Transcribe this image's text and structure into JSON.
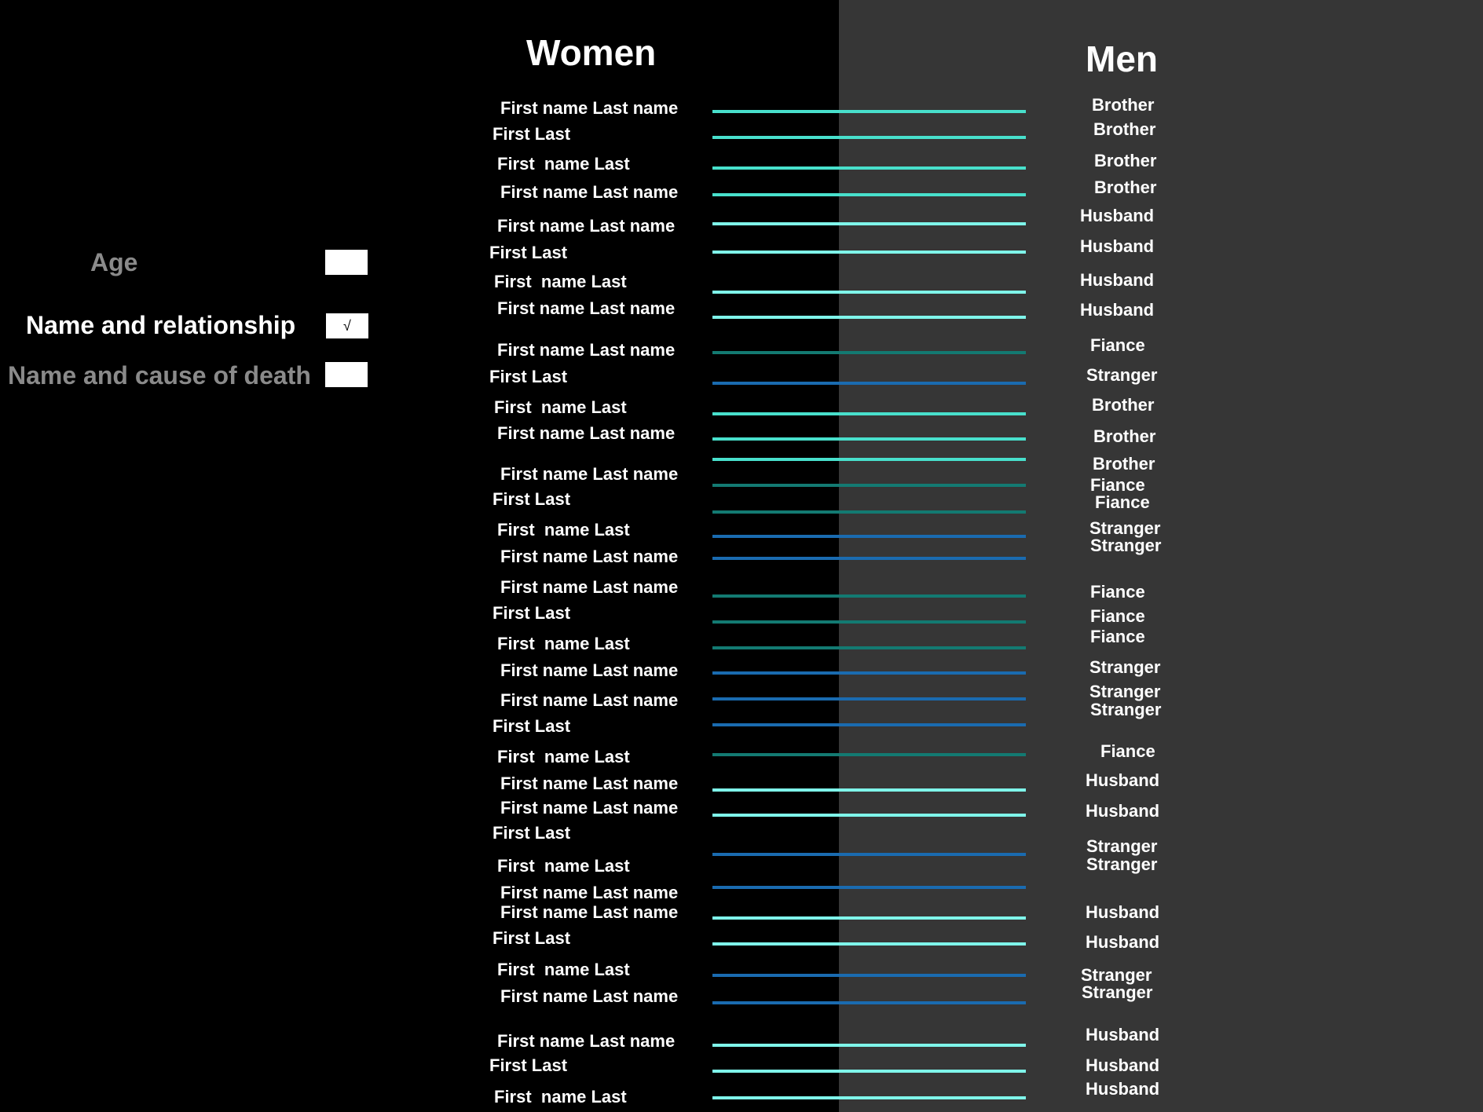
{
  "header": {
    "women_title": "Women",
    "men_title": "Men"
  },
  "options": [
    {
      "label": "Age",
      "checked": false,
      "mark": "",
      "active": false
    },
    {
      "label": "Name and relationship",
      "checked": true,
      "mark": "√",
      "active": true
    },
    {
      "label": "Name and cause of death",
      "checked": false,
      "mark": "",
      "active": false
    }
  ],
  "relationship_colors": {
    "Brother": "#48e0cc",
    "Husband": "#7ff5ea",
    "Fiance": "#137a72",
    "Stranger": "#1a6bb0"
  },
  "women": [
    "First name Last name",
    "First Last",
    "First  name Last",
    "First name Last name",
    "First name Last name",
    "First Last",
    "First  name Last",
    "First name Last name",
    "First name Last name",
    "First Last",
    "First  name Last",
    "First name Last name",
    "First name Last name",
    "First Last",
    "First  name Last",
    "First name Last name",
    "First name Last name",
    "First Last",
    "First  name Last",
    "First name Last name",
    "First name Last name",
    "First Last",
    "First  name Last",
    "First name Last name",
    "First name Last name",
    "First Last",
    "First  name Last",
    "First name Last name",
    "First name Last name",
    "First Last",
    "First  name Last",
    "First name Last name",
    "First name Last name",
    "First Last",
    "First  name Last"
  ],
  "men": [
    "Brother",
    "Brother",
    "Brother",
    "Brother",
    "Husband",
    "Husband",
    "Husband",
    "Husband",
    "Fiance",
    "Stranger",
    "Brother",
    "Brother",
    "Brother",
    "Fiance",
    "Fiance",
    "Stranger",
    "Stranger",
    "Fiance",
    "Fiance",
    "Fiance",
    "Stranger",
    "Stranger",
    "Stranger",
    "Fiance",
    "Husband",
    "Husband",
    "Stranger",
    "Stranger",
    "Husband",
    "Husband",
    "Stranger",
    "Stranger",
    "Husband",
    "Husband",
    "Husband"
  ],
  "links": [
    "Brother",
    "Brother",
    "Brother",
    "Brother",
    "Husband",
    "Husband",
    "Husband",
    "Husband",
    "Fiance",
    "Stranger",
    "Brother",
    "Brother",
    "Brother",
    "Fiance",
    "Fiance",
    "Stranger",
    "Stranger",
    "Fiance",
    "Fiance",
    "Fiance",
    "Stranger",
    "Stranger",
    "Stranger",
    "Fiance",
    "Husband",
    "Husband",
    "Stranger",
    "Stranger",
    "Husband",
    "Husband",
    "Stranger",
    "Stranger",
    "Husband",
    "Husband",
    "Husband"
  ]
}
